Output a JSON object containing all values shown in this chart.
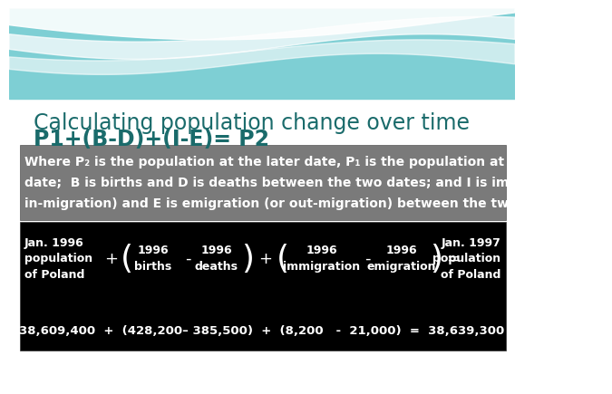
{
  "title_line1": "Calculating population change over time",
  "title_line2": "P1+(B-D)+(I-E)= P2",
  "title_color": "#1a6b6b",
  "explanation_text_lines": [
    "Where P₂ is the population at the later date, P₁ is the population at the earlier",
    "date;  B is births and D is deaths between the two dates; and I is immigration (or",
    "in-migration) and E is emigration (or out-migration) between the two dates."
  ],
  "explanation_bg": "#7a7a7a",
  "equation_bg": "#000000",
  "white": "#ffffff",
  "teal_color": "#7ecfd4",
  "wave_white": "#ffffff",
  "row2_eq": "38,609,400  +  (428,200– 385,500)  +  (8,200   -  21,000)  =  38,639,300"
}
